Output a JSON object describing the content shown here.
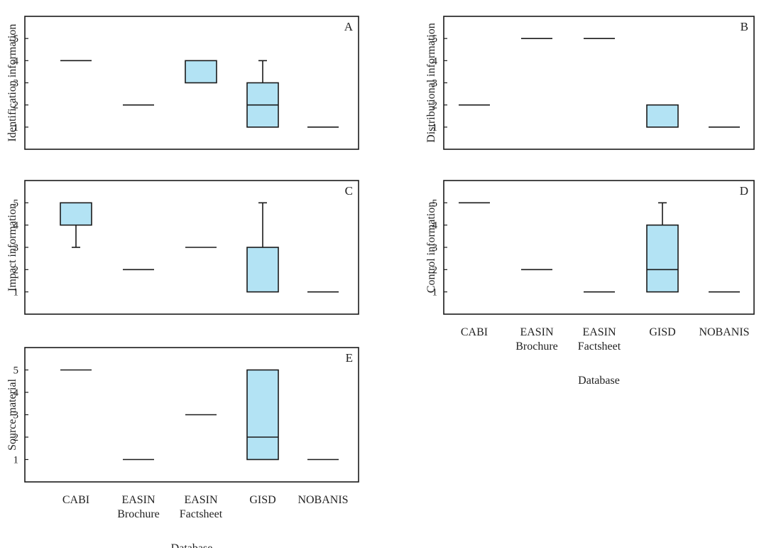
{
  "figure": {
    "xlabel": "Database"
  },
  "colors": {
    "box_fill": "#b3e3f4",
    "line": "#1a1a1a"
  },
  "chart_data": [
    {
      "type": "box",
      "panel": "A",
      "ylabel": "Identification information",
      "yticks": [
        "1",
        "2",
        "3",
        "4",
        "5"
      ],
      "ylim": [
        0,
        6
      ],
      "categories": [
        "CABI",
        "EASIN Brochure",
        "EASIN Factsheet",
        "GISD",
        "NOBANIS"
      ],
      "boxes": [
        {
          "min": 4,
          "q1": 4,
          "median": 4,
          "q3": 4,
          "max": 4
        },
        {
          "min": 2,
          "q1": 2,
          "median": 2,
          "q3": 2,
          "max": 2
        },
        {
          "min": 3,
          "q1": 3,
          "median": 3,
          "q3": 4,
          "max": 4
        },
        {
          "min": 1,
          "q1": 1,
          "median": 2,
          "q3": 3,
          "max": 4
        },
        {
          "min": 1,
          "q1": 1,
          "median": 1,
          "q3": 1,
          "max": 1
        }
      ]
    },
    {
      "type": "box",
      "panel": "B",
      "ylabel": "Distributional information",
      "yticks": [
        "1",
        "2",
        "3",
        "4",
        "5"
      ],
      "ylim": [
        0,
        6
      ],
      "categories": [
        "CABI",
        "EASIN Brochure",
        "EASIN Factsheet",
        "GISD",
        "NOBANIS"
      ],
      "boxes": [
        {
          "min": 2,
          "q1": 2,
          "median": 2,
          "q3": 2,
          "max": 2
        },
        {
          "min": 5,
          "q1": 5,
          "median": 5,
          "q3": 5,
          "max": 5
        },
        {
          "min": 5,
          "q1": 5,
          "median": 5,
          "q3": 5,
          "max": 5
        },
        {
          "min": 1,
          "q1": 1,
          "median": 1,
          "q3": 2,
          "max": 2
        },
        {
          "min": 1,
          "q1": 1,
          "median": 1,
          "q3": 1,
          "max": 1
        }
      ]
    },
    {
      "type": "box",
      "panel": "C",
      "ylabel": "Impact information",
      "yticks": [
        "1",
        "2",
        "3",
        "4",
        "5"
      ],
      "ylim": [
        0,
        6
      ],
      "categories": [
        "CABI",
        "EASIN Brochure",
        "EASIN Factsheet",
        "GISD",
        "NOBANIS"
      ],
      "boxes": [
        {
          "min": 3,
          "q1": 4,
          "median": 4,
          "q3": 5,
          "max": 5
        },
        {
          "min": 2,
          "q1": 2,
          "median": 2,
          "q3": 2,
          "max": 2
        },
        {
          "min": 3,
          "q1": 3,
          "median": 3,
          "q3": 3,
          "max": 3
        },
        {
          "min": 1,
          "q1": 1,
          "median": 1,
          "q3": 3,
          "max": 5
        },
        {
          "min": 1,
          "q1": 1,
          "median": 1,
          "q3": 1,
          "max": 1
        }
      ]
    },
    {
      "type": "box",
      "panel": "D",
      "ylabel": "Control information",
      "yticks": [
        "1",
        "2",
        "3",
        "4",
        "5"
      ],
      "ylim": [
        0,
        6
      ],
      "categories": [
        "CABI",
        "EASIN Brochure",
        "EASIN Factsheet",
        "GISD",
        "NOBANIS"
      ],
      "boxes": [
        {
          "min": 5,
          "q1": 5,
          "median": 5,
          "q3": 5,
          "max": 5
        },
        {
          "min": 2,
          "q1": 2,
          "median": 2,
          "q3": 2,
          "max": 2
        },
        {
          "min": 1,
          "q1": 1,
          "median": 1,
          "q3": 1,
          "max": 1
        },
        {
          "min": 1,
          "q1": 1,
          "median": 2,
          "q3": 4,
          "max": 5
        },
        {
          "min": 1,
          "q1": 1,
          "median": 1,
          "q3": 1,
          "max": 1
        }
      ]
    },
    {
      "type": "box",
      "panel": "E",
      "ylabel": "Source material",
      "yticks": [
        "1",
        "2",
        "3",
        "4",
        "5"
      ],
      "ylim": [
        0,
        6
      ],
      "categories": [
        "CABI",
        "EASIN Brochure",
        "EASIN Factsheet",
        "GISD",
        "NOBANIS"
      ],
      "boxes": [
        {
          "min": 5,
          "q1": 5,
          "median": 5,
          "q3": 5,
          "max": 5
        },
        {
          "min": 1,
          "q1": 1,
          "median": 1,
          "q3": 1,
          "max": 1
        },
        {
          "min": 3,
          "q1": 3,
          "median": 3,
          "q3": 3,
          "max": 3
        },
        {
          "min": 1,
          "q1": 1,
          "median": 2,
          "q3": 5,
          "max": 5
        },
        {
          "min": 1,
          "q1": 1,
          "median": 1,
          "q3": 1,
          "max": 1
        }
      ]
    }
  ]
}
